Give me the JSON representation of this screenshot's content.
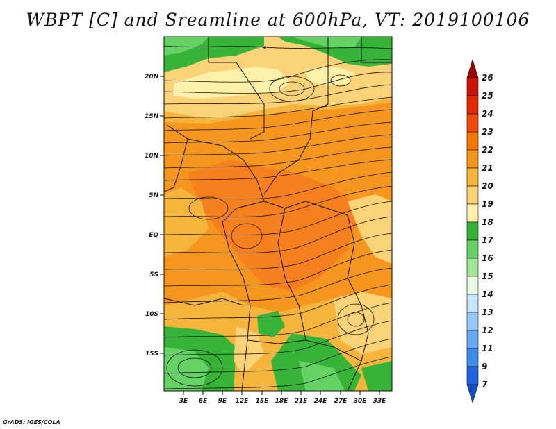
{
  "title": "WBPT [C] and Sreamline at 600hPa, VT: 2019100106",
  "credit": "GrADS: IGES/COLA",
  "map": {
    "lat_labels": [
      "20N",
      "15N",
      "10N",
      "5N",
      "EQ",
      "5S",
      "10S",
      "15S"
    ],
    "lon_labels": [
      "3E",
      "6E",
      "9E",
      "12E",
      "15E",
      "18E",
      "21E",
      "24E",
      "27E",
      "30E",
      "33E"
    ]
  },
  "colorbar": {
    "levels": [
      "26",
      "25",
      "24",
      "23",
      "22",
      "21",
      "20",
      "19",
      "18",
      "17",
      "16",
      "15",
      "14",
      "13",
      "12",
      "11",
      "9",
      "7"
    ],
    "colors": [
      "#a50000",
      "#c81400",
      "#e12800",
      "#f04b0a",
      "#f5780a",
      "#f5961e",
      "#f5b43c",
      "#fad278",
      "#fff0aa",
      "#37b437",
      "#64d264",
      "#a0e696",
      "#e6fae6",
      "#c8e6fa",
      "#96c8fa",
      "#64aaf5",
      "#3c8ceb",
      "#1e64dc",
      "#1450c8"
    ]
  }
}
